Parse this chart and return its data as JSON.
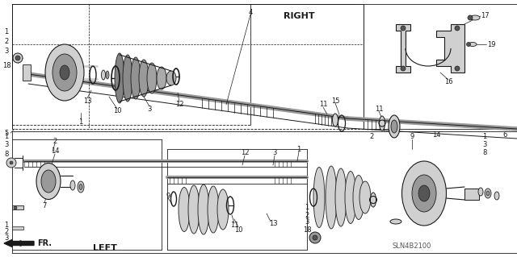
{
  "bg_color": "#ffffff",
  "line_color": "#1a1a1a",
  "gray_light": "#d0d0d0",
  "gray_mid": "#999999",
  "gray_dark": "#555555",
  "right_label": "RIGHT",
  "left_label": "LEFT",
  "fr_label": "FR.",
  "diagram_code": "SLN4B2100"
}
